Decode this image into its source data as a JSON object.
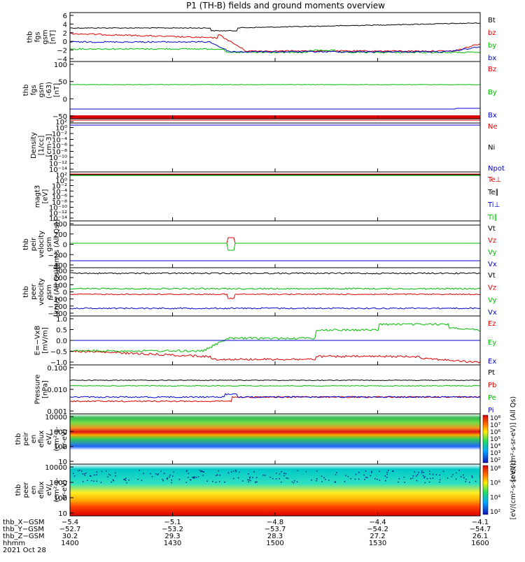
{
  "title": "P1 (TH-B) fields and ground moments overview",
  "colors": {
    "black": "#000000",
    "red": "#dd0000",
    "green": "#00bb00",
    "blue": "#0000cc"
  },
  "chart_data": [
    {
      "type": "line",
      "ylabel": [
        "thb",
        "fgs",
        "gsm",
        "[nT]"
      ],
      "yticks": [
        "6",
        "4",
        "2",
        "0",
        "−2",
        "−4"
      ],
      "series": [
        {
          "name": "Bt",
          "color": "black"
        },
        {
          "name": "bz",
          "color": "red"
        },
        {
          "name": "by",
          "color": "green"
        },
        {
          "name": "bx",
          "color": "blue"
        }
      ]
    },
    {
      "type": "line",
      "ylabel": [
        "thb",
        "fgs",
        "gsm",
        "(-63)",
        "[nT]"
      ],
      "yticks": [
        "100",
        "50",
        "0",
        "−50"
      ],
      "series": [
        {
          "name": "Bz",
          "color": "red"
        },
        {
          "name": "By",
          "color": "green"
        },
        {
          "name": "Bx",
          "color": "blue"
        }
      ]
    },
    {
      "type": "line",
      "ylabel": [
        "Density",
        "[1/cc]",
        "[cm-3]"
      ],
      "yticks": [
        "10²",
        "10⁰",
        "10⁻²",
        "10⁻⁴",
        "10⁻⁶",
        "10⁻⁸",
        "10⁻¹⁰",
        "10⁻¹²",
        "10⁻¹⁴"
      ],
      "series": [
        {
          "name": "Ne",
          "color": "red"
        },
        {
          "name": "Ni",
          "color": "black"
        },
        {
          "name": "Npot",
          "color": "blue"
        }
      ]
    },
    {
      "type": "line",
      "ylabel": [
        "magt3",
        "[eV]"
      ],
      "yticks": [
        "10²",
        "10⁰",
        "10⁻²",
        "10⁻⁴",
        "10⁻⁶",
        "10⁻⁸",
        "10⁻¹⁰",
        "10⁻¹²",
        "10⁻¹⁴"
      ],
      "series": [
        {
          "name": "Te⊥",
          "color": "red"
        },
        {
          "name": "Te∥",
          "color": "black"
        },
        {
          "name": "Ti⊥",
          "color": "blue"
        },
        {
          "name": "Ti∥",
          "color": "green"
        }
      ]
    },
    {
      "type": "line",
      "ylabel": [
        "thb",
        "peir",
        "velocity",
        "gsm",
        "[km/s (All Qs)]"
      ],
      "yticks": [
        "400",
        "200",
        "0",
        "−200",
        "−400"
      ],
      "series": [
        {
          "name": "Vt",
          "color": "black"
        },
        {
          "name": "Vz",
          "color": "red"
        },
        {
          "name": "Vy",
          "color": "green"
        },
        {
          "name": "Vx",
          "color": "blue"
        }
      ]
    },
    {
      "type": "line",
      "ylabel": [
        "thb",
        "peer",
        "velocity",
        "gsm",
        "[km/s (All Qs)]"
      ],
      "yticks": [
        "300",
        "200",
        "100",
        "0",
        "−100",
        "−200",
        "−300"
      ],
      "series": [
        {
          "name": "Vt",
          "color": "black"
        },
        {
          "name": "Vz",
          "color": "red"
        },
        {
          "name": "Vy",
          "color": "green"
        },
        {
          "name": "Vx",
          "color": "blue"
        }
      ]
    },
    {
      "type": "line",
      "ylabel": [
        "E=−VxB",
        "[mV/m]"
      ],
      "yticks": [
        "1.0",
        "0.5",
        "0.0",
        "−0.5",
        "−1.0"
      ],
      "series": [
        {
          "name": "Ez",
          "color": "red"
        },
        {
          "name": "Ey",
          "color": "green"
        },
        {
          "name": "Ex",
          "color": "blue"
        }
      ]
    },
    {
      "type": "line",
      "ylabel": [
        "Pressure",
        "[nPa]"
      ],
      "yticks": [
        "0.100",
        "0.010",
        "0.001"
      ],
      "yscale": "log",
      "series": [
        {
          "name": "Pt",
          "color": "black"
        },
        {
          "name": "Pb",
          "color": "red"
        },
        {
          "name": "Pe",
          "color": "green"
        },
        {
          "name": "Pi",
          "color": "blue"
        }
      ]
    },
    {
      "type": "heatmap",
      "ylabel": [
        "thb",
        "peir",
        "en",
        "eflux",
        "eV/",
        "(cm²-s-",
        "sr-eV)"
      ],
      "yticks": [
        "10000",
        "1000",
        "100",
        "10"
      ],
      "colorbar": {
        "label": "[eV/(cm²-s-sr-eV)] (All Qs)",
        "ticks": [
          "10⁸",
          "10⁷",
          "10⁶",
          "10⁵",
          "10⁴",
          "10³",
          "10²"
        ]
      }
    },
    {
      "type": "heatmap",
      "ylabel": [
        "thb",
        "peer",
        "en",
        "eflux",
        "eV/",
        "(cm²-s-",
        "sr-eV)"
      ],
      "yticks": [
        "10000",
        "1000",
        "100",
        "10"
      ],
      "colorbar": {
        "label": "[eV/(cm²-s-sr-eV)]",
        "ticks": [
          "10⁸",
          "10⁶",
          "10⁴",
          "10²"
        ]
      }
    }
  ],
  "xaxis": {
    "rows": [
      {
        "label": "thb_X−GSM",
        "values": [
          "−5.4",
          "−5.1",
          "−4.8",
          "−4.4",
          "−4.1"
        ]
      },
      {
        "label": "thb_Y−GSM",
        "values": [
          "−52.7",
          "−53.2",
          "−53.7",
          "−54.2",
          "−54.7"
        ]
      },
      {
        "label": "thb_Z−GSM",
        "values": [
          "30.2",
          "29.3",
          "28.3",
          "27.2",
          "26.1"
        ]
      },
      {
        "label": "hhmm",
        "values": [
          "1400",
          "1430",
          "1500",
          "1530",
          "1600"
        ]
      }
    ],
    "date": "2021 Oct 28"
  }
}
